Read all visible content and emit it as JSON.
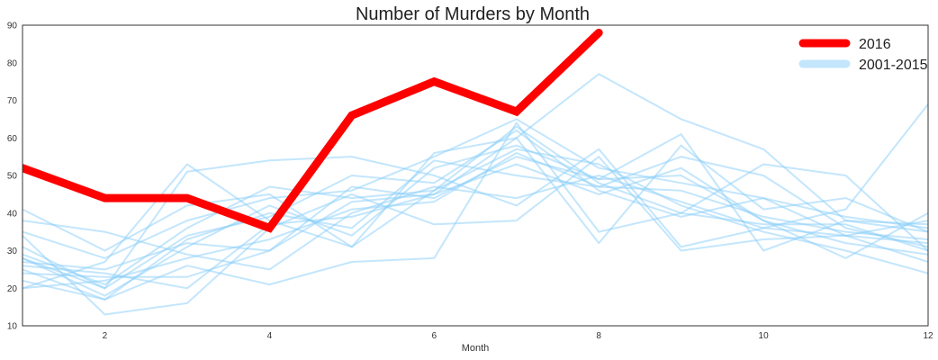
{
  "chart_data": {
    "type": "line",
    "title": "Number of Murders by Month",
    "xlabel": "Month",
    "ylabel": "",
    "xlim": [
      1,
      12
    ],
    "ylim": [
      10,
      90
    ],
    "xticks": [
      2,
      4,
      6,
      8,
      10,
      12
    ],
    "yticks": [
      10,
      20,
      30,
      40,
      50,
      60,
      70,
      80,
      90
    ],
    "grid": false,
    "legend_position": "top-right",
    "legend": [
      {
        "label": "2016",
        "color": "#ff0000"
      },
      {
        "label": "2001-2015",
        "color": "#87cefa"
      }
    ],
    "highlight_series": {
      "name": "2016",
      "color": "#ff0000",
      "x": [
        1,
        2,
        3,
        4,
        5,
        6,
        7,
        8
      ],
      "values": [
        52,
        44,
        44,
        36,
        66,
        75,
        67,
        88
      ]
    },
    "background_series_color": "#87cefa",
    "background_series": [
      {
        "x": [
          1,
          2,
          3,
          4,
          5,
          6,
          7,
          8,
          9,
          10,
          11,
          12
        ],
        "values": [
          41,
          30,
          42,
          45,
          31,
          46,
          63,
          48,
          40,
          37,
          37,
          30
        ]
      },
      {
        "x": [
          1,
          2,
          3,
          4,
          5,
          6,
          7,
          8,
          9,
          10,
          11,
          12
        ],
        "values": [
          28,
          20,
          51,
          54,
          55,
          50,
          42,
          57,
          31,
          36,
          41,
          69
        ]
      },
      {
        "x": [
          1,
          2,
          3,
          4,
          5,
          6,
          7,
          8,
          9,
          10,
          11,
          12
        ],
        "values": [
          20,
          27,
          53,
          38,
          31,
          56,
          60,
          77,
          65,
          57,
          38,
          35
        ]
      },
      {
        "x": [
          1,
          2,
          3,
          4,
          5,
          6,
          7,
          8,
          9,
          10,
          11,
          12
        ],
        "values": [
          24,
          23,
          23,
          30,
          47,
          44,
          55,
          49,
          61,
          30,
          38,
          37
        ]
      },
      {
        "x": [
          1,
          2,
          3,
          4,
          5,
          6,
          7,
          8,
          9,
          10,
          11,
          12
        ],
        "values": [
          25,
          17,
          26,
          21,
          27,
          28,
          64,
          35,
          40,
          53,
          50,
          30
        ]
      },
      {
        "x": [
          1,
          2,
          3,
          4,
          5,
          6,
          7,
          8,
          9,
          10,
          11,
          12
        ],
        "values": [
          29,
          21,
          36,
          47,
          44,
          46,
          57,
          53,
          42,
          35,
          30,
          24
        ]
      },
      {
        "x": [
          1,
          2,
          3,
          4,
          5,
          6,
          7,
          8,
          9,
          10,
          11,
          12
        ],
        "values": [
          22,
          17,
          33,
          40,
          36,
          54,
          50,
          47,
          55,
          50,
          36,
          31
        ]
      },
      {
        "x": [
          1,
          2,
          3,
          4,
          5,
          6,
          7,
          8,
          9,
          10,
          11,
          12
        ],
        "values": [
          34,
          13,
          16,
          36,
          45,
          37,
          38,
          55,
          30,
          33,
          34,
          38
        ]
      },
      {
        "x": [
          1,
          2,
          3,
          4,
          5,
          6,
          7,
          8,
          9,
          10,
          11,
          12
        ],
        "values": [
          26,
          24,
          20,
          37,
          39,
          45,
          53,
          45,
          52,
          38,
          32,
          29
        ]
      },
      {
        "x": [
          1,
          2,
          3,
          4,
          5,
          6,
          7,
          8,
          9,
          10,
          11,
          12
        ],
        "values": [
          38,
          35,
          29,
          25,
          40,
          47,
          44,
          50,
          43,
          36,
          34,
          32
        ]
      },
      {
        "x": [
          1,
          2,
          3,
          4,
          5,
          6,
          7,
          8,
          9,
          10,
          11,
          12
        ],
        "values": [
          27,
          25,
          32,
          30,
          43,
          45,
          60,
          32,
          58,
          41,
          44,
          35
        ]
      },
      {
        "x": [
          1,
          2,
          3,
          4,
          5,
          6,
          7,
          8,
          9,
          10,
          11,
          12
        ],
        "values": [
          31,
          20,
          34,
          39,
          50,
          48,
          62,
          46,
          39,
          44,
          34,
          27
        ]
      },
      {
        "x": [
          1,
          2,
          3,
          4,
          5,
          6,
          7,
          8,
          9,
          10,
          11,
          12
        ],
        "values": [
          28,
          18,
          31,
          42,
          34,
          52,
          58,
          49,
          50,
          38,
          28,
          40
        ]
      },
      {
        "x": [
          1,
          2,
          3,
          4,
          5,
          6,
          7,
          8,
          9,
          10,
          11,
          12
        ],
        "values": [
          20,
          22,
          28,
          33,
          41,
          43,
          56,
          47,
          46,
          39,
          35,
          33
        ]
      },
      {
        "x": [
          1,
          2,
          3,
          4,
          5,
          6,
          7,
          8,
          9,
          10,
          11,
          12
        ],
        "values": [
          35,
          28,
          38,
          44,
          46,
          55,
          65,
          52,
          48,
          44,
          39,
          36
        ]
      }
    ]
  }
}
